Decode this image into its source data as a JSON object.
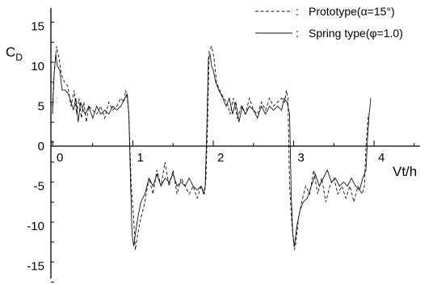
{
  "chart_data": {
    "type": "line",
    "title": "",
    "xlabel": "Vt/h",
    "ylabel": "C",
    "ylabel_subscript": "D",
    "xlim": [
      -0.05,
      4.6
    ],
    "ylim": [
      -17,
      17
    ],
    "x_ticks": [
      0,
      1,
      2,
      3,
      4
    ],
    "y_ticks": [
      15,
      10,
      5,
      0,
      -5,
      -10,
      -15
    ],
    "x_tick_labels": [
      "0",
      "1",
      "2",
      "3",
      "4"
    ],
    "y_tick_labels": [
      "15",
      "10",
      "5",
      "0",
      "-5",
      "-10",
      "-15"
    ],
    "legend_position": "top-right",
    "series": [
      {
        "name": "Prototype(α=15°)",
        "legend_label": "Prototype(α=15°)",
        "style": "dashed",
        "x": [
          0.0,
          0.02,
          0.05,
          0.08,
          0.11,
          0.15,
          0.19,
          0.23,
          0.27,
          0.3,
          0.33,
          0.36,
          0.39,
          0.42,
          0.45,
          0.5,
          0.55,
          0.6,
          0.65,
          0.7,
          0.75,
          0.8,
          0.85,
          0.89,
          0.91,
          0.93,
          0.95,
          0.98,
          1.01,
          1.03,
          1.06,
          1.1,
          1.15,
          1.2,
          1.25,
          1.3,
          1.35,
          1.4,
          1.45,
          1.5,
          1.55,
          1.6,
          1.65,
          1.7,
          1.75,
          1.8,
          1.85,
          1.89,
          1.91,
          1.93,
          1.95,
          1.98,
          2.01,
          2.04,
          2.08,
          2.13,
          2.17,
          2.21,
          2.25,
          2.3,
          2.35,
          2.4,
          2.45,
          2.5,
          2.55,
          2.6,
          2.65,
          2.7,
          2.75,
          2.8,
          2.85,
          2.89,
          2.91,
          2.93,
          2.95,
          2.98,
          3.01,
          3.03,
          3.06,
          3.1,
          3.15,
          3.2,
          3.25,
          3.3,
          3.35,
          3.4,
          3.45,
          3.5,
          3.55,
          3.6,
          3.65,
          3.7,
          3.75,
          3.8,
          3.85,
          3.88,
          3.9,
          3.93
        ],
        "y": [
          5,
          9,
          12.5,
          11,
          9,
          8,
          7.5,
          5,
          7,
          4,
          6,
          3.5,
          5.5,
          3,
          5,
          4.5,
          4,
          5,
          3.5,
          5.5,
          4.5,
          5,
          6,
          5.5,
          7,
          6,
          4,
          -5,
          -9,
          -13,
          -11,
          -9,
          -7,
          -4,
          -6,
          -3,
          -5,
          -2,
          -5,
          -3,
          -6,
          -4,
          -5,
          -6,
          -5,
          -6.5,
          -5,
          -6,
          -4,
          3,
          12,
          12.5,
          11,
          8,
          7,
          6,
          5.5,
          4,
          6,
          3.5,
          5,
          4,
          6,
          4.5,
          4,
          5.5,
          4.5,
          6,
          5,
          5.5,
          6,
          5.5,
          7,
          6,
          -5,
          -10,
          -13,
          -12,
          -9,
          -7,
          -5,
          -6,
          -3,
          -6,
          -4,
          -7,
          -5,
          -4,
          -6,
          -5,
          -6.5,
          -5,
          -7,
          -5,
          -6,
          -5,
          0,
          4
        ]
      },
      {
        "name": "Spring type(φ=1.0)",
        "legend_label": "Spring type(φ=1.0)",
        "style": "solid",
        "x": [
          0.0,
          0.02,
          0.04,
          0.06,
          0.09,
          0.12,
          0.16,
          0.2,
          0.23,
          0.26,
          0.29,
          0.32,
          0.35,
          0.38,
          0.41,
          0.45,
          0.5,
          0.55,
          0.6,
          0.65,
          0.7,
          0.75,
          0.8,
          0.85,
          0.9,
          0.93,
          0.95,
          0.97,
          0.99,
          1.01,
          1.03,
          1.06,
          1.1,
          1.15,
          1.2,
          1.25,
          1.3,
          1.35,
          1.4,
          1.45,
          1.5,
          1.55,
          1.6,
          1.65,
          1.7,
          1.75,
          1.8,
          1.85,
          1.88,
          1.9,
          1.92,
          1.94,
          1.96,
          1.98,
          2.0,
          2.03,
          2.07,
          2.12,
          2.16,
          2.2,
          2.24,
          2.28,
          2.32,
          2.36,
          2.4,
          2.45,
          2.5,
          2.55,
          2.6,
          2.65,
          2.7,
          2.75,
          2.8,
          2.85,
          2.88,
          2.92,
          2.95,
          2.97,
          2.99,
          3.01,
          3.04,
          3.08,
          3.12,
          3.17,
          3.22,
          3.27,
          3.32,
          3.37,
          3.42,
          3.47,
          3.52,
          3.57,
          3.62,
          3.67,
          3.72,
          3.77,
          3.82,
          3.86,
          3.9,
          3.92,
          3.94,
          3.96
        ],
        "y": [
          4,
          9,
          11.5,
          10,
          9.5,
          7,
          7,
          6.5,
          5.5,
          4.5,
          6,
          3,
          5.5,
          4.5,
          4,
          5,
          3.5,
          5,
          4,
          4.5,
          4,
          5,
          4.5,
          5,
          6,
          6.5,
          4,
          -4,
          -11,
          -12.5,
          -11,
          -9,
          -7,
          -6,
          -4,
          -5,
          -3.5,
          -5,
          -4,
          -4.5,
          -3.5,
          -5,
          -4.5,
          -5,
          -4,
          -5,
          -5.5,
          -5,
          -6,
          -5,
          2,
          11,
          11.5,
          10,
          9.5,
          8,
          7,
          6,
          5,
          6,
          4,
          5.5,
          3,
          5,
          4,
          5,
          4.5,
          3.5,
          5,
          4,
          5,
          4.5,
          5,
          4.5,
          6,
          5.5,
          4,
          -6,
          -11,
          -12.5,
          -10,
          -8,
          -7,
          -6.5,
          -5,
          -3.5,
          -5,
          -4,
          -3,
          -4.5,
          -4,
          -5,
          -4.5,
          -5,
          -4,
          -5,
          -5.5,
          -4,
          -3,
          1,
          4,
          6
        ]
      }
    ]
  }
}
